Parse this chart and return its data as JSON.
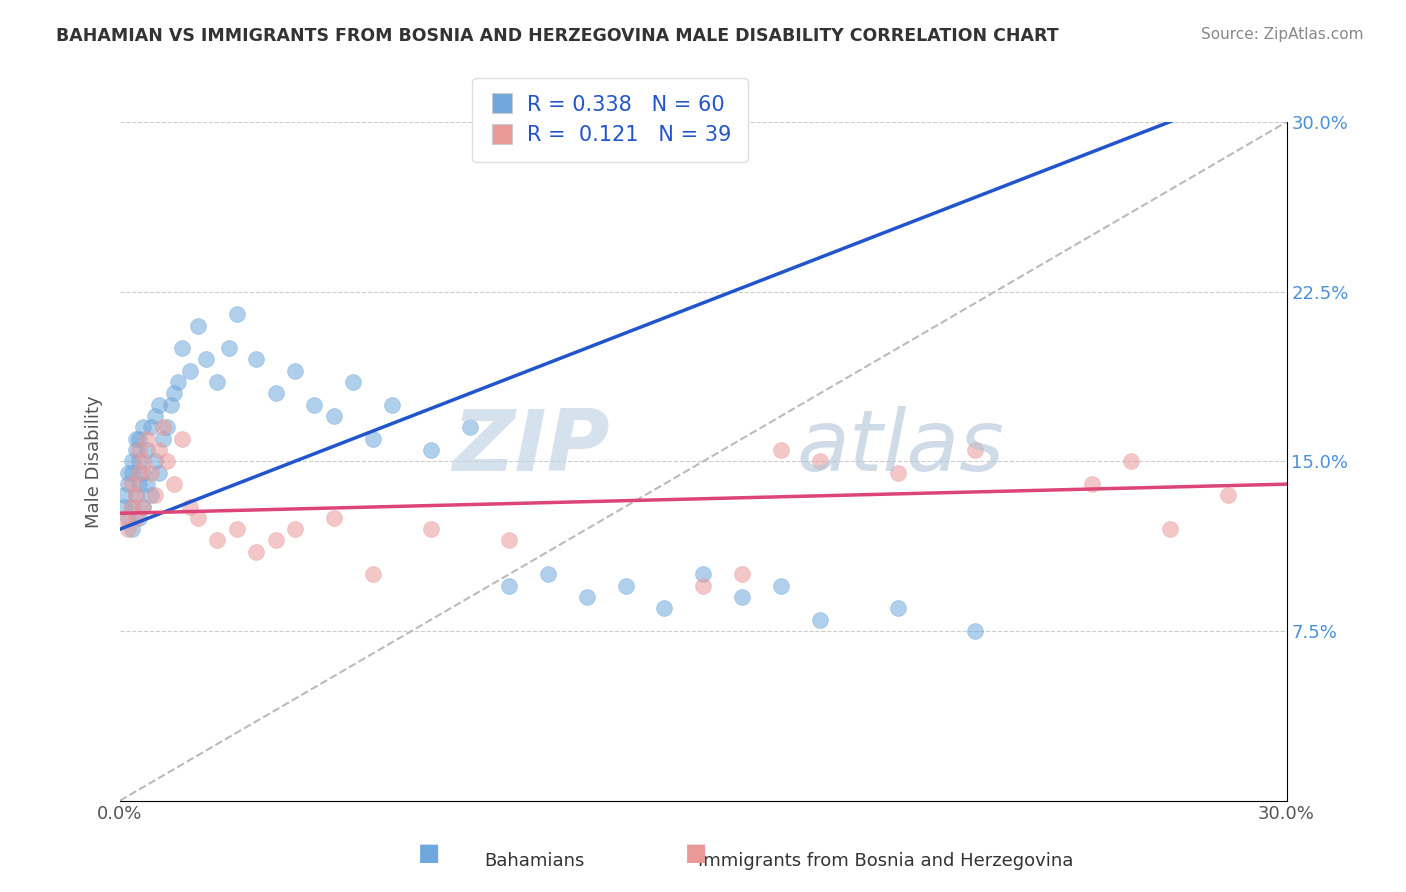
{
  "title": "BAHAMIAN VS IMMIGRANTS FROM BOSNIA AND HERZEGOVINA MALE DISABILITY CORRELATION CHART",
  "source": "Source: ZipAtlas.com",
  "ylabel": "Male Disability",
  "blue_R": 0.338,
  "blue_N": 60,
  "pink_R": 0.121,
  "pink_N": 39,
  "blue_color": "#6fa8dc",
  "pink_color": "#ea9999",
  "blue_line_color": "#2255cc",
  "pink_line_color": "#dd4477",
  "dashed_line_color": "#aaaaaa",
  "watermark_zip": "ZIP",
  "watermark_atlas": "atlas",
  "legend_label_blue": "Bahamians",
  "legend_label_pink": "Immigrants from Bosnia and Herzegovina",
  "blue_x": [
    0.001,
    0.001,
    0.002,
    0.002,
    0.002,
    0.003,
    0.003,
    0.003,
    0.003,
    0.004,
    0.004,
    0.004,
    0.005,
    0.005,
    0.005,
    0.005,
    0.006,
    0.006,
    0.006,
    0.007,
    0.007,
    0.008,
    0.008,
    0.009,
    0.009,
    0.01,
    0.01,
    0.011,
    0.012,
    0.013,
    0.014,
    0.015,
    0.016,
    0.018,
    0.02,
    0.022,
    0.025,
    0.028,
    0.03,
    0.035,
    0.04,
    0.045,
    0.05,
    0.055,
    0.06,
    0.065,
    0.07,
    0.08,
    0.09,
    0.1,
    0.11,
    0.12,
    0.13,
    0.14,
    0.15,
    0.16,
    0.17,
    0.18,
    0.2,
    0.22
  ],
  "blue_y": [
    0.13,
    0.135,
    0.125,
    0.14,
    0.145,
    0.12,
    0.13,
    0.145,
    0.15,
    0.135,
    0.155,
    0.16,
    0.125,
    0.14,
    0.15,
    0.16,
    0.13,
    0.145,
    0.165,
    0.14,
    0.155,
    0.135,
    0.165,
    0.15,
    0.17,
    0.145,
    0.175,
    0.16,
    0.165,
    0.175,
    0.18,
    0.185,
    0.2,
    0.19,
    0.21,
    0.195,
    0.185,
    0.2,
    0.215,
    0.195,
    0.18,
    0.19,
    0.175,
    0.17,
    0.185,
    0.16,
    0.175,
    0.155,
    0.165,
    0.095,
    0.1,
    0.09,
    0.095,
    0.085,
    0.1,
    0.09,
    0.095,
    0.08,
    0.085,
    0.075
  ],
  "pink_x": [
    0.001,
    0.002,
    0.003,
    0.003,
    0.004,
    0.004,
    0.005,
    0.005,
    0.006,
    0.006,
    0.007,
    0.008,
    0.009,
    0.01,
    0.011,
    0.012,
    0.014,
    0.016,
    0.018,
    0.02,
    0.025,
    0.03,
    0.035,
    0.04,
    0.045,
    0.055,
    0.065,
    0.08,
    0.1,
    0.15,
    0.16,
    0.17,
    0.18,
    0.2,
    0.22,
    0.25,
    0.26,
    0.27,
    0.285
  ],
  "pink_y": [
    0.125,
    0.12,
    0.13,
    0.14,
    0.125,
    0.135,
    0.145,
    0.155,
    0.13,
    0.15,
    0.16,
    0.145,
    0.135,
    0.155,
    0.165,
    0.15,
    0.14,
    0.16,
    0.13,
    0.125,
    0.115,
    0.12,
    0.11,
    0.115,
    0.12,
    0.125,
    0.1,
    0.12,
    0.115,
    0.095,
    0.1,
    0.155,
    0.15,
    0.145,
    0.155,
    0.14,
    0.15,
    0.12,
    0.135
  ]
}
